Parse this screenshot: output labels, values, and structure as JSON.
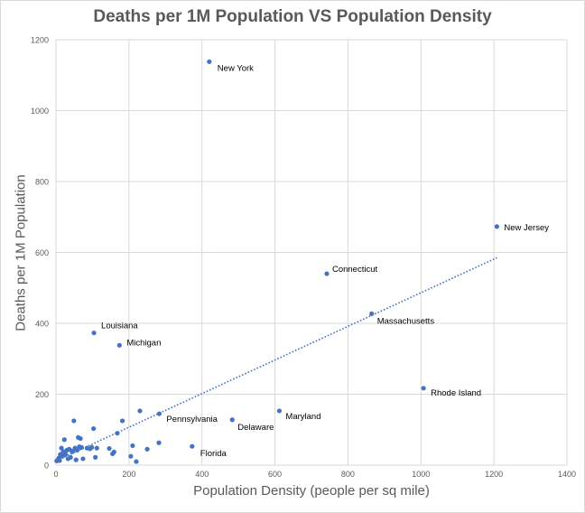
{
  "chart_data": {
    "type": "scatter",
    "title": "Deaths per 1M Population VS Population Density",
    "xlabel": "Population Density (people per sq mile)",
    "ylabel": "Deaths per 1M Population",
    "xlim": [
      0,
      1400
    ],
    "ylim": [
      0,
      1200
    ],
    "xticks": [
      0,
      200,
      400,
      600,
      800,
      1000,
      1200,
      1400
    ],
    "yticks": [
      0,
      200,
      400,
      600,
      800,
      1000,
      1200
    ],
    "grid": true,
    "point_color": "#4472c4",
    "trendline": {
      "type": "linear",
      "style": "dotted",
      "x": [
        0,
        1208
      ],
      "y": [
        12,
        585
      ]
    },
    "labeled_points": [
      {
        "label": "New York",
        "x": 420,
        "y": 1138
      },
      {
        "label": "New Jersey",
        "x": 1208,
        "y": 673
      },
      {
        "label": "Connecticut",
        "x": 742,
        "y": 540
      },
      {
        "label": "Massachusetts",
        "x": 865,
        "y": 427
      },
      {
        "label": "Louisiana",
        "x": 104,
        "y": 373
      },
      {
        "label": "Michigan",
        "x": 174,
        "y": 338
      },
      {
        "label": "Rhode Island",
        "x": 1007,
        "y": 217
      },
      {
        "label": "Maryland",
        "x": 612,
        "y": 153
      },
      {
        "label": "Pennsylvania",
        "x": 283,
        "y": 145
      },
      {
        "label": "Delaware",
        "x": 483,
        "y": 128
      },
      {
        "label": "Florida",
        "x": 373,
        "y": 53
      }
    ],
    "other_points": [
      {
        "x": 2,
        "y": 12
      },
      {
        "x": 5,
        "y": 15
      },
      {
        "x": 8,
        "y": 20
      },
      {
        "x": 10,
        "y": 13
      },
      {
        "x": 12,
        "y": 30
      },
      {
        "x": 15,
        "y": 48
      },
      {
        "x": 18,
        "y": 25
      },
      {
        "x": 20,
        "y": 38
      },
      {
        "x": 23,
        "y": 72
      },
      {
        "x": 26,
        "y": 30
      },
      {
        "x": 30,
        "y": 42
      },
      {
        "x": 33,
        "y": 18
      },
      {
        "x": 36,
        "y": 45
      },
      {
        "x": 40,
        "y": 22
      },
      {
        "x": 43,
        "y": 40
      },
      {
        "x": 46,
        "y": 38
      },
      {
        "x": 49,
        "y": 125
      },
      {
        "x": 52,
        "y": 48
      },
      {
        "x": 55,
        "y": 15
      },
      {
        "x": 58,
        "y": 42
      },
      {
        "x": 61,
        "y": 78
      },
      {
        "x": 64,
        "y": 52
      },
      {
        "x": 67,
        "y": 75
      },
      {
        "x": 70,
        "y": 50
      },
      {
        "x": 74,
        "y": 18
      },
      {
        "x": 85,
        "y": 48
      },
      {
        "x": 93,
        "y": 46
      },
      {
        "x": 98,
        "y": 50
      },
      {
        "x": 103,
        "y": 103
      },
      {
        "x": 108,
        "y": 22
      },
      {
        "x": 112,
        "y": 48
      },
      {
        "x": 146,
        "y": 47
      },
      {
        "x": 155,
        "y": 32
      },
      {
        "x": 159,
        "y": 37
      },
      {
        "x": 168,
        "y": 90
      },
      {
        "x": 182,
        "y": 125
      },
      {
        "x": 205,
        "y": 25
      },
      {
        "x": 210,
        "y": 55
      },
      {
        "x": 220,
        "y": 10
      },
      {
        "x": 230,
        "y": 153
      },
      {
        "x": 250,
        "y": 45
      },
      {
        "x": 282,
        "y": 63
      }
    ]
  }
}
